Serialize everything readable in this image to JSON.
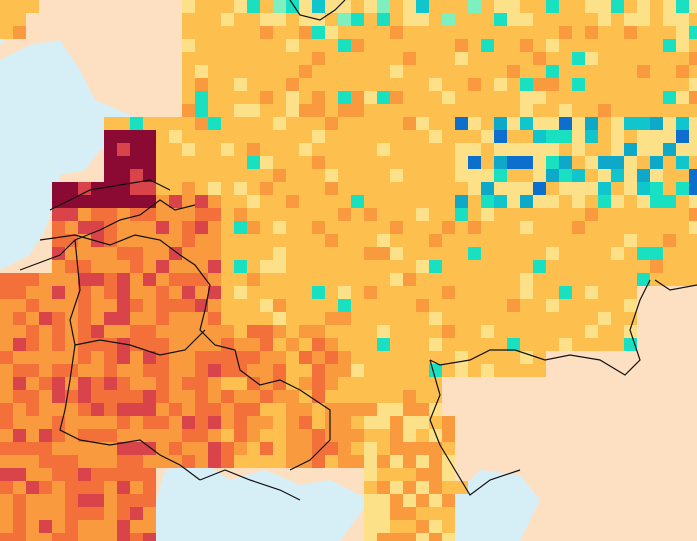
{
  "map": {
    "palette": {
      "outside_land": "#fde0c2",
      "sea": "#d6eff7",
      "border": "#111111",
      "bins": [
        "#8a0a33",
        "#d9434a",
        "#f4703a",
        "#f99a3e",
        "#fdbf4d",
        "#fde189",
        "#fef3b3",
        "#c8f7c2",
        "#7ef0c0",
        "#19e0c0",
        "#10c6cc",
        "#0ea8c8",
        "#0c6fce",
        "#1f3fb3"
      ]
    }
  }
}
